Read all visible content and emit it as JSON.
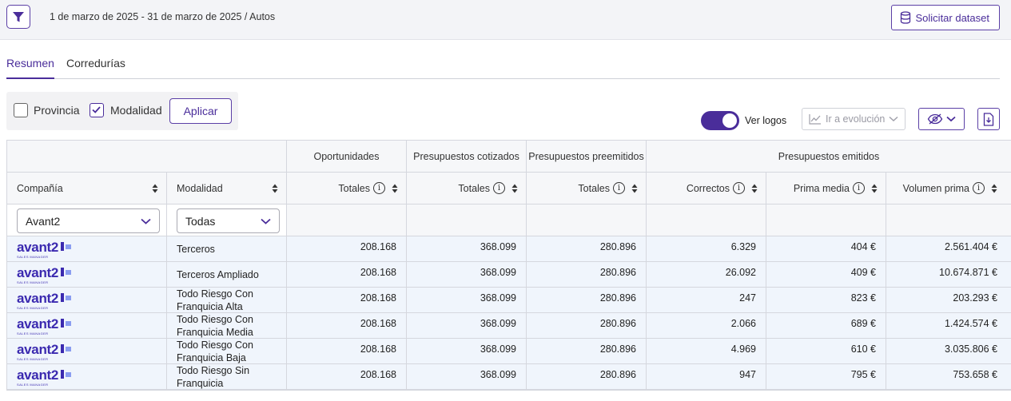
{
  "header": {
    "breadcrumb": "1 de marzo de 2025 - 31 de marzo de 2025 / Autos",
    "dataset_button": "Solicitar dataset",
    "accent": "#4a2d9a"
  },
  "tabs": [
    {
      "label": "Resumen",
      "active": true
    },
    {
      "label": "Corredurías",
      "active": false
    }
  ],
  "filters": {
    "provincia": {
      "label": "Provincia",
      "checked": false
    },
    "modalidad": {
      "label": "Modalidad",
      "checked": true
    },
    "apply_label": "Aplicar"
  },
  "toolbar": {
    "ver_logos_label": "Ver logos",
    "ver_logos_on": true,
    "evolucion_label": "Ir a evolución"
  },
  "table": {
    "groups": {
      "oportunidades": "Oportunidades",
      "cotizados": "Presupuestos cotizados",
      "preemitidos": "Presupuestos preemitidos",
      "emitidos": "Presupuestos emitidos"
    },
    "columns": {
      "compania": "Compañía",
      "modalidad": "Modalidad",
      "op_totales": "Totales",
      "cot_totales": "Totales",
      "pre_totales": "Totales",
      "correctos": "Correctos",
      "prima_media": "Prima media",
      "volumen_prima": "Volumen prima"
    },
    "filter_values": {
      "compania": "Avant2",
      "modalidad": "Todas"
    },
    "logo": {
      "word": "avant2",
      "sub": "SALES MANAGER"
    },
    "rows": [
      {
        "modalidad": "Terceros",
        "op": "208.168",
        "cot": "368.099",
        "pre": "280.896",
        "correctos": "6.329",
        "prima_media": "404 €",
        "volumen": "2.561.404 €"
      },
      {
        "modalidad": "Terceros Ampliado",
        "op": "208.168",
        "cot": "368.099",
        "pre": "280.896",
        "correctos": "26.092",
        "prima_media": "409 €",
        "volumen": "10.674.871 €"
      },
      {
        "modalidad": "Todo Riesgo Con Franquicia Alta",
        "op": "208.168",
        "cot": "368.099",
        "pre": "280.896",
        "correctos": "247",
        "prima_media": "823 €",
        "volumen": "203.293 €"
      },
      {
        "modalidad": "Todo Riesgo Con Franquicia Media",
        "op": "208.168",
        "cot": "368.099",
        "pre": "280.896",
        "correctos": "2.066",
        "prima_media": "689 €",
        "volumen": "1.424.574 €"
      },
      {
        "modalidad": "Todo Riesgo Con Franquicia Baja",
        "op": "208.168",
        "cot": "368.099",
        "pre": "280.896",
        "correctos": "4.969",
        "prima_media": "610 €",
        "volumen": "3.035.806 €"
      },
      {
        "modalidad": "Todo Riesgo Sin Franquicia",
        "op": "208.168",
        "cot": "368.099",
        "pre": "280.896",
        "correctos": "947",
        "prima_media": "795 €",
        "volumen": "753.658 €"
      }
    ]
  }
}
